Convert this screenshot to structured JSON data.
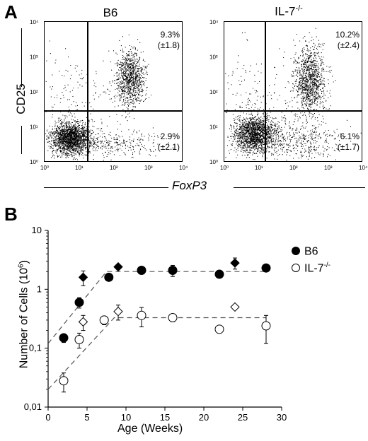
{
  "panel_a": {
    "letter": "A",
    "ylabel": "CD25",
    "xlabel": "FoxP3",
    "plots": [
      {
        "title": "B6",
        "title_sup": "",
        "upper_right": "9.3%",
        "upper_right_sd": "(±1.8)",
        "lower_right": "2.9%",
        "lower_right_sd": "(±2.1)"
      },
      {
        "title": "IL-7",
        "title_sup": "-/-",
        "upper_right": "10.2%",
        "upper_right_sd": "(±2.4)",
        "lower_right": "6.1%",
        "lower_right_sd": "(±1.7)"
      }
    ],
    "axis_ticks": [
      "10⁰",
      "10¹",
      "10²",
      "10³",
      "10⁴"
    ]
  },
  "panel_b": {
    "letter": "B",
    "legend": [
      {
        "label": "B6",
        "label_sup": "",
        "marker": "filled-circle"
      },
      {
        "label": "IL-7",
        "label_sup": "-/-",
        "marker": "open-circle"
      }
    ]
  },
  "chart_data": {
    "type": "scatter",
    "xlabel": "Age (Weeks)",
    "ylabel": "Number of Cells (10",
    "ylabel_sup": "6",
    "ylabel_close": ")",
    "xlim": [
      0,
      30
    ],
    "ylim": [
      0.01,
      10
    ],
    "yscale": "log",
    "x_ticks": [
      0,
      5,
      10,
      15,
      20,
      25,
      30
    ],
    "y_ticks": [
      {
        "v": 0.01,
        "label": "0,01"
      },
      {
        "v": 0.1,
        "label": "0,1"
      },
      {
        "v": 1,
        "label": "1"
      },
      {
        "v": 10,
        "label": "10"
      }
    ],
    "series": [
      {
        "name": "B6",
        "points": [
          {
            "x": 2,
            "y": 0.15,
            "err": 0.025,
            "marker": "circle"
          },
          {
            "x": 4,
            "y": 0.6,
            "err": 0.12,
            "marker": "circle"
          },
          {
            "x": 4.5,
            "y": 1.6,
            "err": 0.45,
            "marker": "diamond"
          },
          {
            "x": 7.8,
            "y": 1.6,
            "err": 0.2,
            "marker": "circle"
          },
          {
            "x": 9,
            "y": 2.4,
            "err": 0.2,
            "marker": "diamond"
          },
          {
            "x": 12,
            "y": 2.1,
            "err": 0.25,
            "marker": "circle"
          },
          {
            "x": 16,
            "y": 2.1,
            "err": 0.45,
            "marker": "circle"
          },
          {
            "x": 22,
            "y": 1.8,
            "err": 0.2,
            "marker": "circle"
          },
          {
            "x": 24,
            "y": 2.8,
            "err": 0.6,
            "marker": "diamond"
          },
          {
            "x": 28,
            "y": 2.3,
            "err": 0.2,
            "marker": "circle"
          }
        ],
        "fit": [
          [
            0,
            0.12
          ],
          [
            7.5,
            2.0
          ],
          [
            28,
            2.0
          ]
        ]
      },
      {
        "name": "IL-7-/-",
        "points": [
          {
            "x": 2,
            "y": 0.028,
            "err": 0.01,
            "marker": "circle"
          },
          {
            "x": 4,
            "y": 0.14,
            "err": 0.04,
            "marker": "circle"
          },
          {
            "x": 4.5,
            "y": 0.28,
            "err": 0.08,
            "marker": "diamond"
          },
          {
            "x": 7.2,
            "y": 0.3,
            "err": 0.05,
            "marker": "circle"
          },
          {
            "x": 9,
            "y": 0.42,
            "err": 0.12,
            "marker": "diamond"
          },
          {
            "x": 12,
            "y": 0.36,
            "err": 0.13,
            "marker": "circle"
          },
          {
            "x": 16,
            "y": 0.33,
            "err": 0.05,
            "marker": "circle"
          },
          {
            "x": 22,
            "y": 0.21,
            "err": 0.03,
            "marker": "circle"
          },
          {
            "x": 24,
            "y": 0.5,
            "err": 0.05,
            "marker": "diamond"
          },
          {
            "x": 28,
            "y": 0.24,
            "err": 0.12,
            "marker": "circle"
          }
        ],
        "fit": [
          [
            0,
            0.02
          ],
          [
            8.5,
            0.33
          ],
          [
            28,
            0.33
          ]
        ]
      }
    ]
  }
}
